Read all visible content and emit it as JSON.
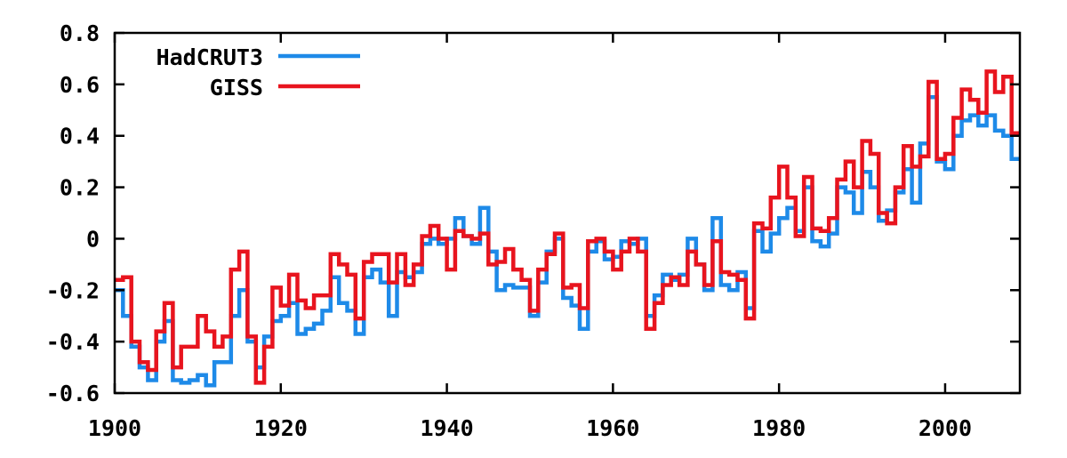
{
  "chart_data": {
    "type": "line",
    "step": true,
    "title": "",
    "xlabel": "",
    "ylabel": "",
    "xlim": [
      1900,
      2009
    ],
    "ylim": [
      -0.6,
      0.8
    ],
    "xticks": [
      1900,
      1920,
      1940,
      1960,
      1980,
      2000
    ],
    "yticks": [
      -0.6,
      -0.4,
      -0.2,
      0,
      0.2,
      0.4,
      0.6,
      0.8
    ],
    "xtick_labels": [
      "1900",
      "1920",
      "1940",
      "1960",
      "1980",
      "2000"
    ],
    "ytick_labels": [
      "-0.6",
      "-0.4",
      "-0.2",
      "0",
      "0.2",
      "0.4",
      "0.6",
      "0.8"
    ],
    "legend_position": "top-left",
    "grid": false,
    "x": [
      1900,
      1901,
      1902,
      1903,
      1904,
      1905,
      1906,
      1907,
      1908,
      1909,
      1910,
      1911,
      1912,
      1913,
      1914,
      1915,
      1916,
      1917,
      1918,
      1919,
      1920,
      1921,
      1922,
      1923,
      1924,
      1925,
      1926,
      1927,
      1928,
      1929,
      1930,
      1931,
      1932,
      1933,
      1934,
      1935,
      1936,
      1937,
      1938,
      1939,
      1940,
      1941,
      1942,
      1943,
      1944,
      1945,
      1946,
      1947,
      1948,
      1949,
      1950,
      1951,
      1952,
      1953,
      1954,
      1955,
      1956,
      1957,
      1958,
      1959,
      1960,
      1961,
      1962,
      1963,
      1964,
      1965,
      1966,
      1967,
      1968,
      1969,
      1970,
      1971,
      1972,
      1973,
      1974,
      1975,
      1976,
      1977,
      1978,
      1979,
      1980,
      1981,
      1982,
      1983,
      1984,
      1985,
      1986,
      1987,
      1988,
      1989,
      1990,
      1991,
      1992,
      1993,
      1994,
      1995,
      1996,
      1997,
      1998,
      1999,
      2000,
      2001,
      2002,
      2003,
      2004,
      2005,
      2006,
      2007,
      2008
    ],
    "series": [
      {
        "name": "HadCRUT3",
        "color": "#1e8ae8",
        "values": [
          -0.2,
          -0.3,
          -0.42,
          -0.5,
          -0.55,
          -0.4,
          -0.32,
          -0.55,
          -0.56,
          -0.55,
          -0.53,
          -0.57,
          -0.48,
          -0.48,
          -0.3,
          -0.2,
          -0.4,
          -0.5,
          -0.38,
          -0.32,
          -0.3,
          -0.25,
          -0.37,
          -0.35,
          -0.33,
          -0.28,
          -0.15,
          -0.25,
          -0.28,
          -0.37,
          -0.15,
          -0.12,
          -0.17,
          -0.3,
          -0.13,
          -0.15,
          -0.13,
          -0.02,
          0.0,
          -0.02,
          0.0,
          0.08,
          0.01,
          -0.02,
          0.12,
          -0.05,
          -0.2,
          -0.18,
          -0.19,
          -0.19,
          -0.3,
          -0.17,
          -0.05,
          0.0,
          -0.23,
          -0.26,
          -0.35,
          -0.05,
          -0.01,
          -0.08,
          -0.07,
          -0.01,
          -0.02,
          0.0,
          -0.3,
          -0.22,
          -0.14,
          -0.16,
          -0.14,
          0.0,
          -0.1,
          -0.2,
          0.08,
          -0.18,
          -0.2,
          -0.13,
          -0.27,
          0.03,
          -0.05,
          0.02,
          0.08,
          0.12,
          0.03,
          0.2,
          -0.01,
          -0.03,
          0.02,
          0.2,
          0.18,
          0.1,
          0.26,
          0.2,
          0.07,
          0.11,
          0.18,
          0.27,
          0.14,
          0.37,
          0.55,
          0.3,
          0.27,
          0.4,
          0.46,
          0.48,
          0.44,
          0.48,
          0.42,
          0.4,
          0.31
        ]
      },
      {
        "name": "GISS",
        "color": "#e8141e",
        "values": [
          -0.16,
          -0.15,
          -0.4,
          -0.48,
          -0.51,
          -0.36,
          -0.25,
          -0.5,
          -0.42,
          -0.42,
          -0.3,
          -0.36,
          -0.42,
          -0.38,
          -0.12,
          -0.05,
          -0.38,
          -0.56,
          -0.42,
          -0.19,
          -0.26,
          -0.14,
          -0.24,
          -0.27,
          -0.22,
          -0.22,
          -0.06,
          -0.1,
          -0.14,
          -0.31,
          -0.09,
          -0.06,
          -0.06,
          -0.17,
          -0.06,
          -0.18,
          -0.1,
          0.01,
          0.05,
          0.0,
          -0.12,
          0.03,
          0.01,
          0.0,
          0.02,
          -0.1,
          -0.09,
          -0.04,
          -0.12,
          -0.16,
          -0.28,
          -0.12,
          -0.06,
          0.02,
          -0.19,
          -0.18,
          -0.27,
          -0.01,
          0.0,
          -0.05,
          -0.12,
          -0.05,
          0.0,
          -0.05,
          -0.35,
          -0.25,
          -0.18,
          -0.15,
          -0.18,
          -0.05,
          -0.1,
          -0.18,
          -0.01,
          -0.13,
          -0.14,
          -0.16,
          -0.31,
          0.06,
          0.04,
          0.16,
          0.28,
          0.16,
          0.01,
          0.24,
          0.04,
          0.03,
          0.08,
          0.23,
          0.3,
          0.2,
          0.38,
          0.33,
          0.1,
          0.06,
          0.2,
          0.36,
          0.28,
          0.32,
          0.61,
          0.31,
          0.33,
          0.47,
          0.58,
          0.54,
          0.49,
          0.65,
          0.57,
          0.63,
          0.41
        ]
      }
    ]
  }
}
